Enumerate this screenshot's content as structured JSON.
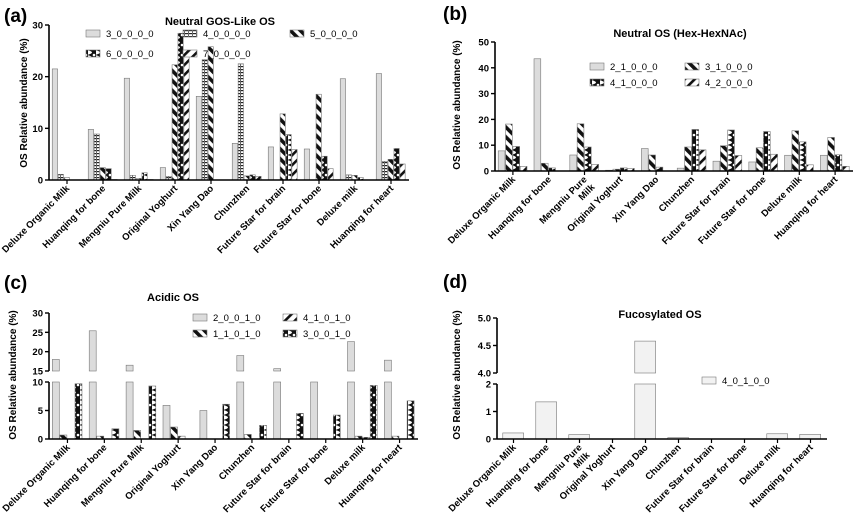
{
  "chart_data": [
    {
      "panel": "(a)",
      "type": "bar",
      "title": "Neutral GOS-Like OS",
      "ylabel": "OS Relative abundance (%)",
      "ylim": [
        0,
        30
      ],
      "y_segments": [
        [
          0,
          30
        ]
      ],
      "yticks": [
        0,
        10,
        20,
        30
      ],
      "grid": false,
      "categories": [
        "Deluxe Organic Milk",
        "Huanqing for bone",
        "Mengniu Pure Milk",
        "Original Yoghurt",
        "Xin Yang Dao",
        "Chunzhen",
        "Future Star for brain",
        "Future Star for bone",
        "Deluxe milk",
        "Huanqing for heart"
      ],
      "series": [
        {
          "name": "3_0_0_0_0",
          "pattern": "light-gray",
          "values": [
            21.5,
            9.8,
            19.7,
            2.4,
            16.2,
            7.1,
            6.4,
            6.0,
            19.6,
            20.6
          ]
        },
        {
          "name": "4_0_0_0_0",
          "pattern": "horizontal-grid",
          "values": [
            1.1,
            8.9,
            0.9,
            0.7,
            23.3,
            22.5,
            0,
            0,
            1.0,
            3.6
          ]
        },
        {
          "name": "5_0_0_0_0",
          "pattern": "black-back-diagonal",
          "values": [
            0.5,
            2.4,
            0.3,
            22.3,
            25.8,
            0.8,
            12.8,
            16.6,
            0.9,
            4.0
          ]
        },
        {
          "name": "6_0_0_0_0",
          "pattern": "black-wave",
          "values": [
            0,
            2.2,
            1.4,
            28.4,
            0,
            1.0,
            8.8,
            4.6,
            0.5,
            6.1
          ]
        },
        {
          "name": "7_0_0_0_0",
          "pattern": "forward-diagonal",
          "values": [
            0,
            0.1,
            0.1,
            24.5,
            0,
            0.7,
            5.9,
            2.2,
            0,
            3.1
          ]
        }
      ],
      "legend_placement": "top"
    },
    {
      "panel": "(b)",
      "type": "bar",
      "title": "Neutral OS (Hex-HexNAc)",
      "ylabel": "OS Relative abundance (%)",
      "ylim": [
        0,
        50
      ],
      "y_segments": [
        [
          0,
          50
        ]
      ],
      "yticks": [
        0,
        10,
        20,
        30,
        40,
        50
      ],
      "grid": false,
      "categories": [
        "Deluxe Organic Milk",
        "Huanqing for bone",
        "Mengniu Pure\nMilk",
        "Original Yoghurt",
        "Xin Yang Dao",
        "Chunzhen",
        "Future Star for brain",
        "Future Star for bone",
        "Deluxe milk",
        "Huanqing for heart"
      ],
      "series": [
        {
          "name": "2_1_0_0_0",
          "pattern": "light-gray",
          "values": [
            7.8,
            43.5,
            6.2,
            0.3,
            8.7,
            1.1,
            3.8,
            3.5,
            6.1,
            6.1
          ]
        },
        {
          "name": "3_1_0_0_0",
          "pattern": "black-back-diagonal",
          "values": [
            18.2,
            3.0,
            18.3,
            0.7,
            6.2,
            9.3,
            9.8,
            9.0,
            15.6,
            13.0
          ]
        },
        {
          "name": "4_1_0_0_0",
          "pattern": "black-wave",
          "values": [
            9.5,
            1.2,
            9.3,
            1.2,
            1.5,
            16.1,
            15.9,
            15.3,
            11.3,
            6.3
          ]
        },
        {
          "name": "4_2_0_0_0",
          "pattern": "forward-diagonal",
          "values": [
            1.8,
            0,
            2.6,
            1.0,
            0,
            8.2,
            6.0,
            6.5,
            2.4,
            1.8
          ]
        }
      ],
      "legend_placement": "top-center"
    },
    {
      "panel": "(c)",
      "type": "bar",
      "title": "Acidic OS",
      "ylabel": "OS Relative abundance (%)",
      "ylim": [
        0,
        30
      ],
      "y_segments": [
        [
          0,
          10
        ],
        [
          15,
          30
        ]
      ],
      "yticks": [
        0,
        5,
        10,
        15,
        20,
        25,
        30
      ],
      "grid": false,
      "categories": [
        "Deluxe Organic Milk",
        "Huanqing for bone",
        "Mengniu Pure Milk",
        "Original Yoghurt",
        "Xin Yang Dao",
        "Chunzhen",
        "Future Star for brain",
        "Future Star for bone",
        "Deluxe milk",
        "Huanqing for heart"
      ],
      "series": [
        {
          "name": "2_0_0_1_0",
          "pattern": "light-gray",
          "values": [
            18.0,
            25.4,
            16.5,
            5.9,
            5.0,
            19.0,
            15.6,
            10.0,
            22.6,
            17.8
          ]
        },
        {
          "name": "1_1_0_1_0",
          "pattern": "black-back-diagonal",
          "values": [
            0.7,
            0.5,
            1.5,
            2.1,
            0,
            0.8,
            0,
            0,
            0.5,
            0.5
          ]
        },
        {
          "name": "4_1_0_1_0",
          "pattern": "forward-diagonal",
          "values": [
            0,
            0,
            0,
            0.5,
            0,
            0,
            0,
            0,
            0.3,
            0
          ]
        },
        {
          "name": "3_0_0_1_0",
          "pattern": "black-wave",
          "values": [
            9.7,
            1.8,
            9.3,
            0,
            6.1,
            2.4,
            4.5,
            4.2,
            9.4,
            6.7
          ]
        }
      ],
      "legend_order": [
        "2_0_0_1_0",
        "4_1_0_1_0",
        "1_1_0_1_0",
        "3_0_0_1_0"
      ],
      "legend_placement": "top-right"
    },
    {
      "panel": "(d)",
      "type": "bar",
      "title": "Fucosylated OS",
      "ylabel": "OS Relative abundance (%)",
      "ylim": [
        0,
        5.0
      ],
      "y_segments": [
        [
          0,
          2
        ],
        [
          4.0,
          5.0
        ]
      ],
      "yticks": [
        "0",
        "1",
        "2",
        "4.0",
        "4.5",
        "5.0"
      ],
      "grid": false,
      "categories": [
        "Deluxe Organic Milk",
        "Huanqing for bone",
        "Mengniu Pure\nMilk",
        "Original Yoghurt",
        "Xin Yang Dao",
        "Chunzhen",
        "Future Star for brain",
        "Future Star for bone",
        "Deluxe milk",
        "Huanqing for heart"
      ],
      "series": [
        {
          "name": "4_0_1_0_0",
          "pattern": "very-light-gray",
          "values": [
            0.22,
            1.35,
            0.16,
            0,
            4.58,
            0.05,
            0,
            0,
            0.19,
            0.17
          ]
        }
      ],
      "legend_placement": "right"
    }
  ]
}
